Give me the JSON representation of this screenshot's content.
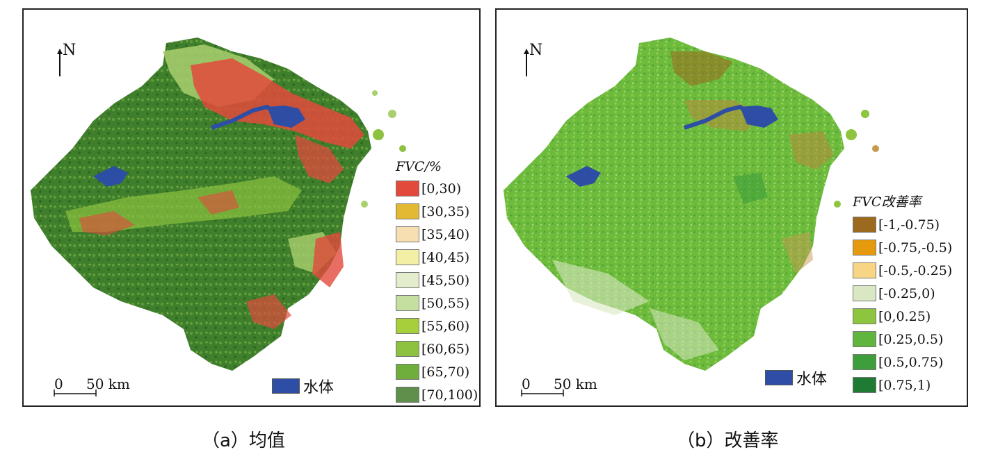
{
  "panel_a": {
    "north_label": "N",
    "scale_zero": "0",
    "scale_text": "50 km",
    "water_label": "水体",
    "legend_title": "FVC/%",
    "legend": [
      {
        "label": "[0,30)",
        "color": "#e24a3c"
      },
      {
        "label": "[30,35)",
        "color": "#e3b833"
      },
      {
        "label": "[35,40)",
        "color": "#f7dfb2"
      },
      {
        "label": "[40,45)",
        "color": "#f3f0a6"
      },
      {
        "label": "[45,50)",
        "color": "#e3eccd"
      },
      {
        "label": "[50,55)",
        "color": "#c5dfa0"
      },
      {
        "label": "[55,60)",
        "color": "#a7cf3c"
      },
      {
        "label": "[60,65)",
        "color": "#8cc23f"
      },
      {
        "label": "[65,70)",
        "color": "#6fae3d"
      },
      {
        "label": "[70,100)",
        "color": "#5f8f4a"
      }
    ],
    "caption": "（a）均值"
  },
  "panel_b": {
    "north_label": "N",
    "scale_zero": "0",
    "scale_text": "50 km",
    "water_label": "水体",
    "legend_title": "FVC改善率",
    "legend": [
      {
        "label": "[-1,-0.75)",
        "color": "#9b6a1e"
      },
      {
        "label": "[-0.75,-0.5)",
        "color": "#e59a0e"
      },
      {
        "label": "[-0.5,-0.25)",
        "color": "#f7d585"
      },
      {
        "label": "[-0.25,0)",
        "color": "#d9e8c2"
      },
      {
        "label": "[0,0.25)",
        "color": "#8dc53e"
      },
      {
        "label": "[0.25,0.5)",
        "color": "#5fb53d"
      },
      {
        "label": "[0.5,0.75)",
        "color": "#3e9e3b"
      },
      {
        "label": "[0.75,1)",
        "color": "#1f7a34"
      }
    ],
    "caption": "（b）改善率"
  },
  "water_color": "#2e4ea6"
}
